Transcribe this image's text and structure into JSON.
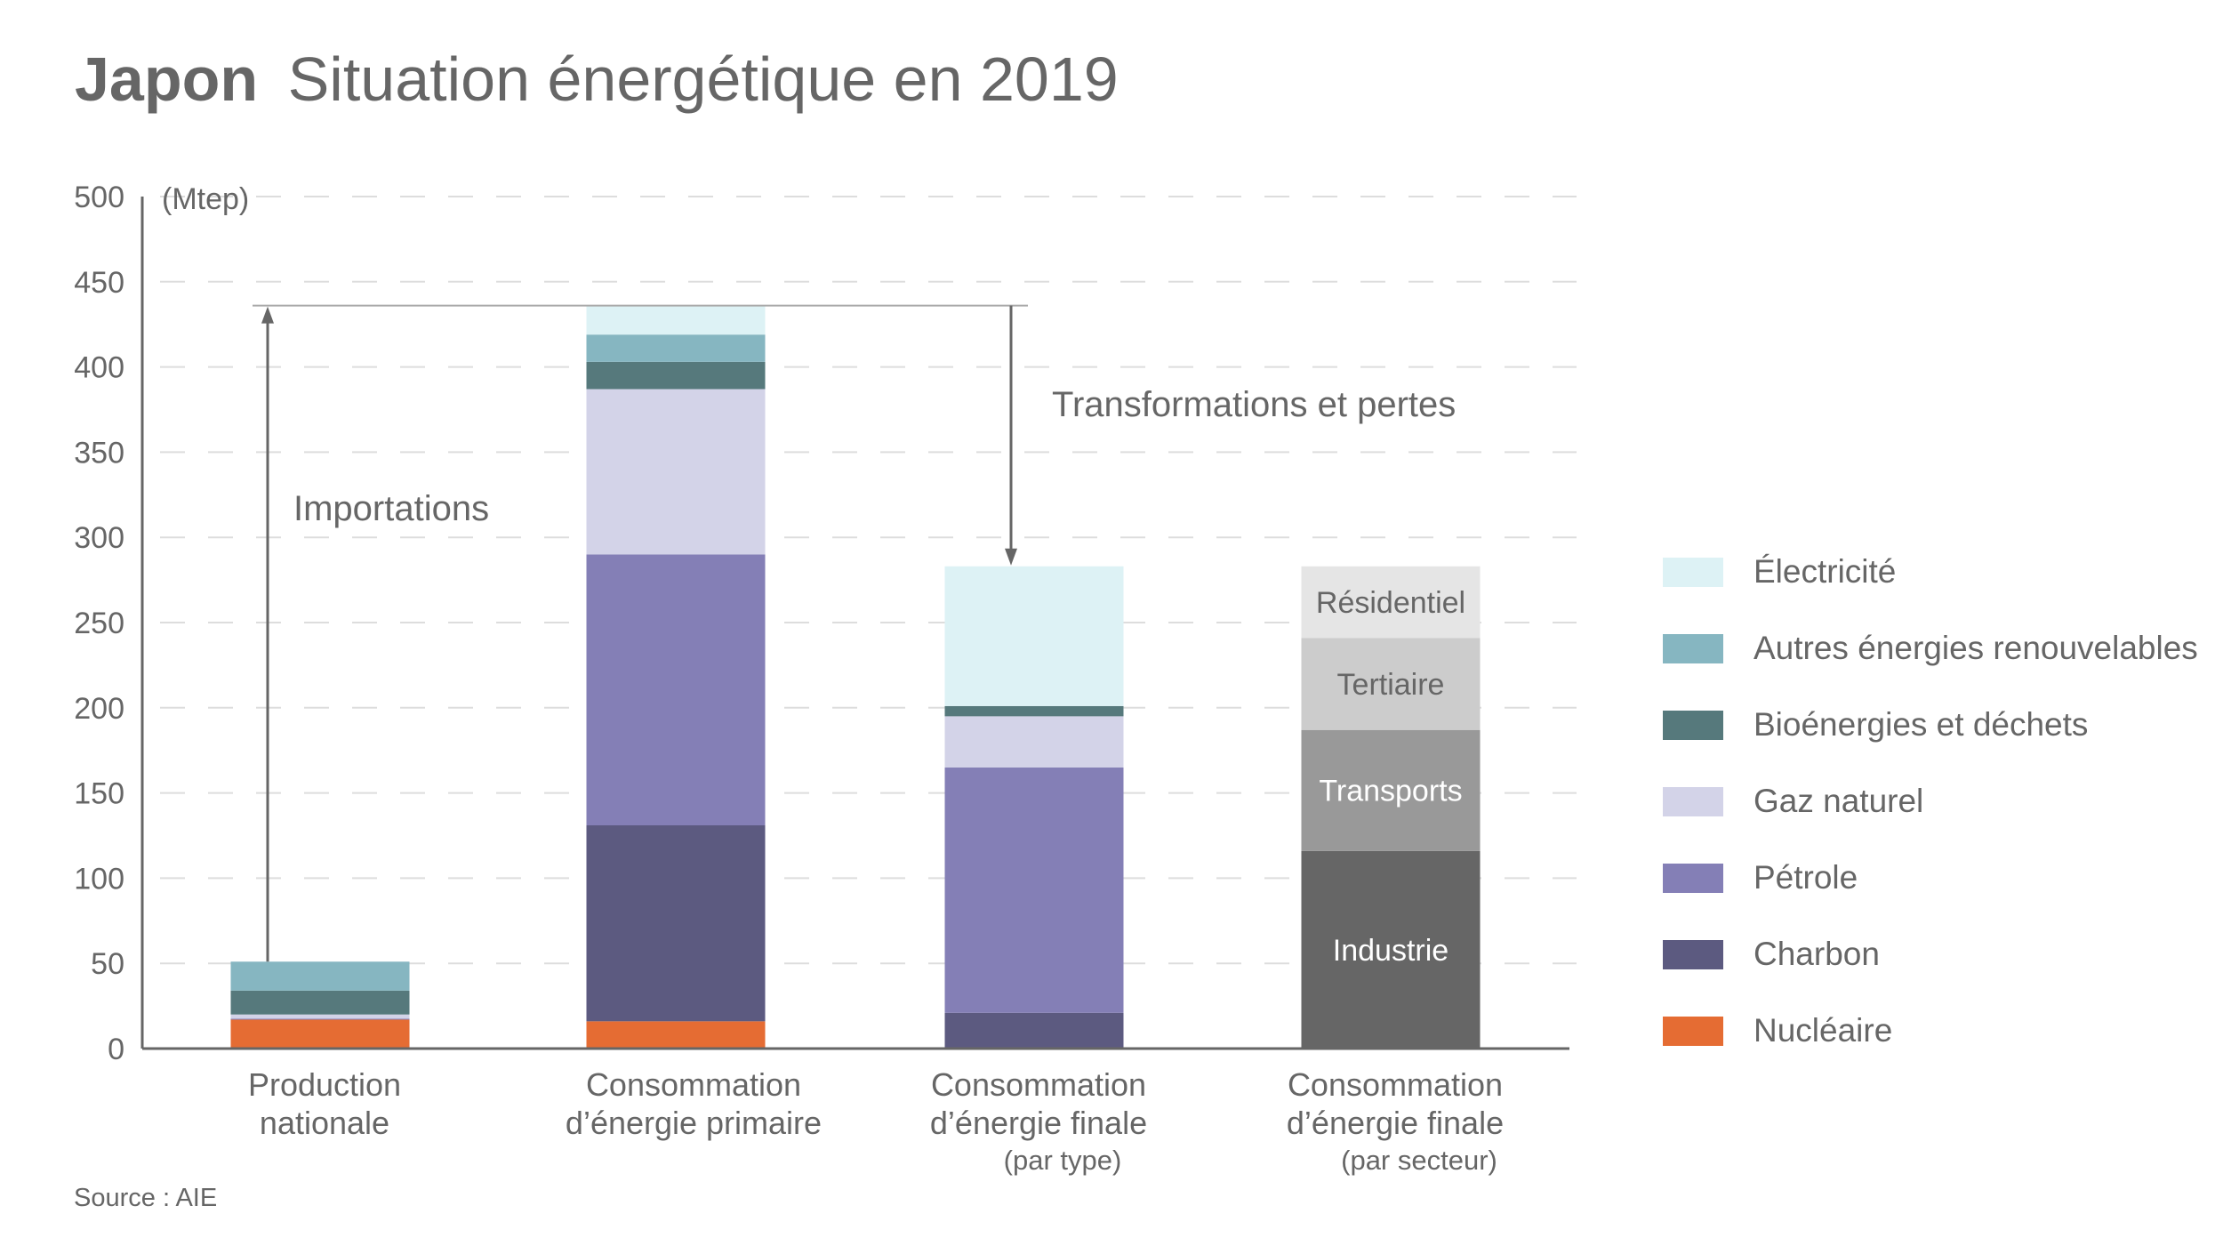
{
  "chart_data": {
    "type": "bar",
    "stacked": true,
    "title_bold": "Japon",
    "title": "Situation énergétique en 2019",
    "xlabel": "",
    "ylabel": "(Mtep)",
    "ylim": [
      0,
      500
    ],
    "yticks": [
      0,
      50,
      100,
      150,
      200,
      250,
      300,
      350,
      400,
      450,
      500
    ],
    "grid": true,
    "legend_position": "right",
    "categories": [
      {
        "lines": [
          "Production",
          "nationale"
        ],
        "sub": ""
      },
      {
        "lines": [
          "Consommation",
          "d’énergie primaire"
        ],
        "sub": ""
      },
      {
        "lines": [
          "Consommation",
          "d’énergie finale"
        ],
        "sub": "(par type)"
      },
      {
        "lines": [
          "Consommation",
          "d’énergie finale"
        ],
        "sub": "(par secteur)"
      }
    ],
    "series": [
      {
        "name": "Nucléaire",
        "color": "#e56c33",
        "values": [
          17,
          16,
          0,
          null
        ]
      },
      {
        "name": "Charbon",
        "color": "#5c5a80",
        "values": [
          0,
          115,
          21,
          null
        ]
      },
      {
        "name": "Pétrole",
        "color": "#847fb6",
        "values": [
          0.5,
          159,
          144,
          null
        ]
      },
      {
        "name": "Gaz naturel",
        "color": "#d3d3e8",
        "values": [
          2.5,
          97,
          30,
          null
        ]
      },
      {
        "name": "Bioénergies et déchets",
        "color": "#56797c",
        "values": [
          14,
          16,
          6,
          null
        ]
      },
      {
        "name": "Autres énergies renouvelables",
        "color": "#86b6c1",
        "values": [
          17,
          16,
          0,
          null
        ]
      },
      {
        "name": "Électricité",
        "color": "#ddf2f5",
        "values": [
          0,
          17,
          82,
          null
        ]
      }
    ],
    "sector_series": [
      {
        "name": "Industrie",
        "color": "#666666",
        "text_color": "#ffffff",
        "value": 116
      },
      {
        "name": "Transports",
        "color": "#999999",
        "text_color": "#ffffff",
        "value": 71
      },
      {
        "name": "Tertiaire",
        "color": "#cccccc",
        "text_color": "#666666",
        "value": 54
      },
      {
        "name": "Résidentiel",
        "color": "#e5e5e5",
        "text_color": "#666666",
        "value": 42
      }
    ],
    "legend_order": [
      "Électricité",
      "Autres énergies renouvelables",
      "Bioénergies et déchets",
      "Gaz naturel",
      "Pétrole",
      "Charbon",
      "Nucléaire"
    ],
    "annotations": [
      {
        "text": "Importations",
        "type": "arrow-up",
        "from_value": 51,
        "to_value": 436
      },
      {
        "text": "Transformations et pertes",
        "type": "arrow-down",
        "from_value": 436,
        "to_value": 283
      }
    ],
    "source": "Source : AIE"
  }
}
